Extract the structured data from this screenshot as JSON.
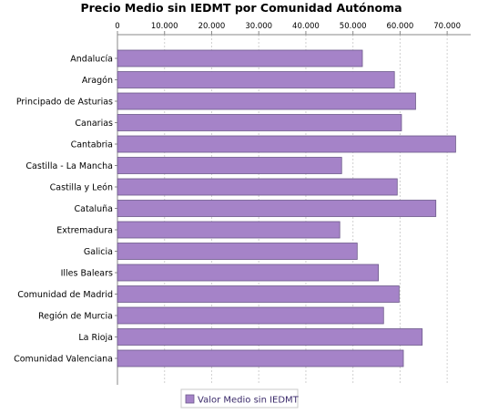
{
  "chart_data": {
    "type": "bar",
    "orientation": "horizontal",
    "title": "Precio Medio sin IEDMT por Comunidad Autónoma",
    "xlabel": "",
    "ylabel": "",
    "xlim": [
      0,
      75000
    ],
    "x_ticks": [
      0,
      10000,
      20000,
      30000,
      40000,
      50000,
      60000,
      70000
    ],
    "x_tick_labels": [
      "0",
      "10.000",
      "20.000",
      "30.000",
      "40.000",
      "50.000",
      "60.000",
      "70.000"
    ],
    "x_axis_position": "top",
    "grid": true,
    "legend_position": "bottom",
    "categories": [
      "Andalucía",
      "Aragón",
      "Principado de Asturias",
      "Canarias",
      "Cantabria",
      "Castilla - La Mancha",
      "Castilla y León",
      "Cataluña",
      "Extremadura",
      "Galicia",
      "Illes Balears",
      "Comunidad de Madrid",
      "Región de Murcia",
      "La Rioja",
      "Comunidad Valenciana"
    ],
    "series": [
      {
        "name": "Valor Medio sin IEDMT",
        "color": "#a583c8",
        "values": [
          52000,
          58800,
          63300,
          60300,
          71800,
          47600,
          59400,
          67600,
          47200,
          50900,
          55400,
          59800,
          56500,
          64700,
          60700
        ]
      }
    ]
  }
}
